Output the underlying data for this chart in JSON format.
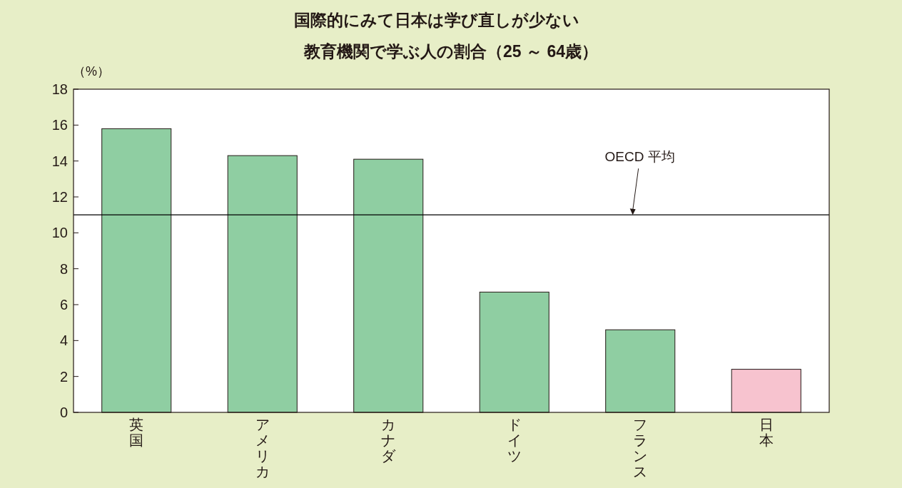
{
  "chart_data": {
    "type": "bar",
    "title": "国際的にみて日本は学び直しが少ない",
    "subtitle": "教育機関で学ぶ人の割合（25 ～ 64歳）",
    "ylabel": "（%）",
    "categories": [
      "英国",
      "アメリカ",
      "カナダ",
      "ドイツ",
      "フランス",
      "日本"
    ],
    "values": [
      15.8,
      14.3,
      14.1,
      6.7,
      4.6,
      2.4
    ],
    "colors": [
      "#8fcea2",
      "#8fcea2",
      "#8fcea2",
      "#8fcea2",
      "#8fcea2",
      "#f7c3cf"
    ],
    "ylim": [
      0,
      18
    ],
    "yticks": [
      0,
      2,
      4,
      6,
      8,
      10,
      12,
      14,
      16,
      18
    ],
    "ref_lines": [
      {
        "axis": "y",
        "value": 11.0,
        "label": "OECD 平均",
        "color": "#000000"
      }
    ],
    "grid": false
  }
}
